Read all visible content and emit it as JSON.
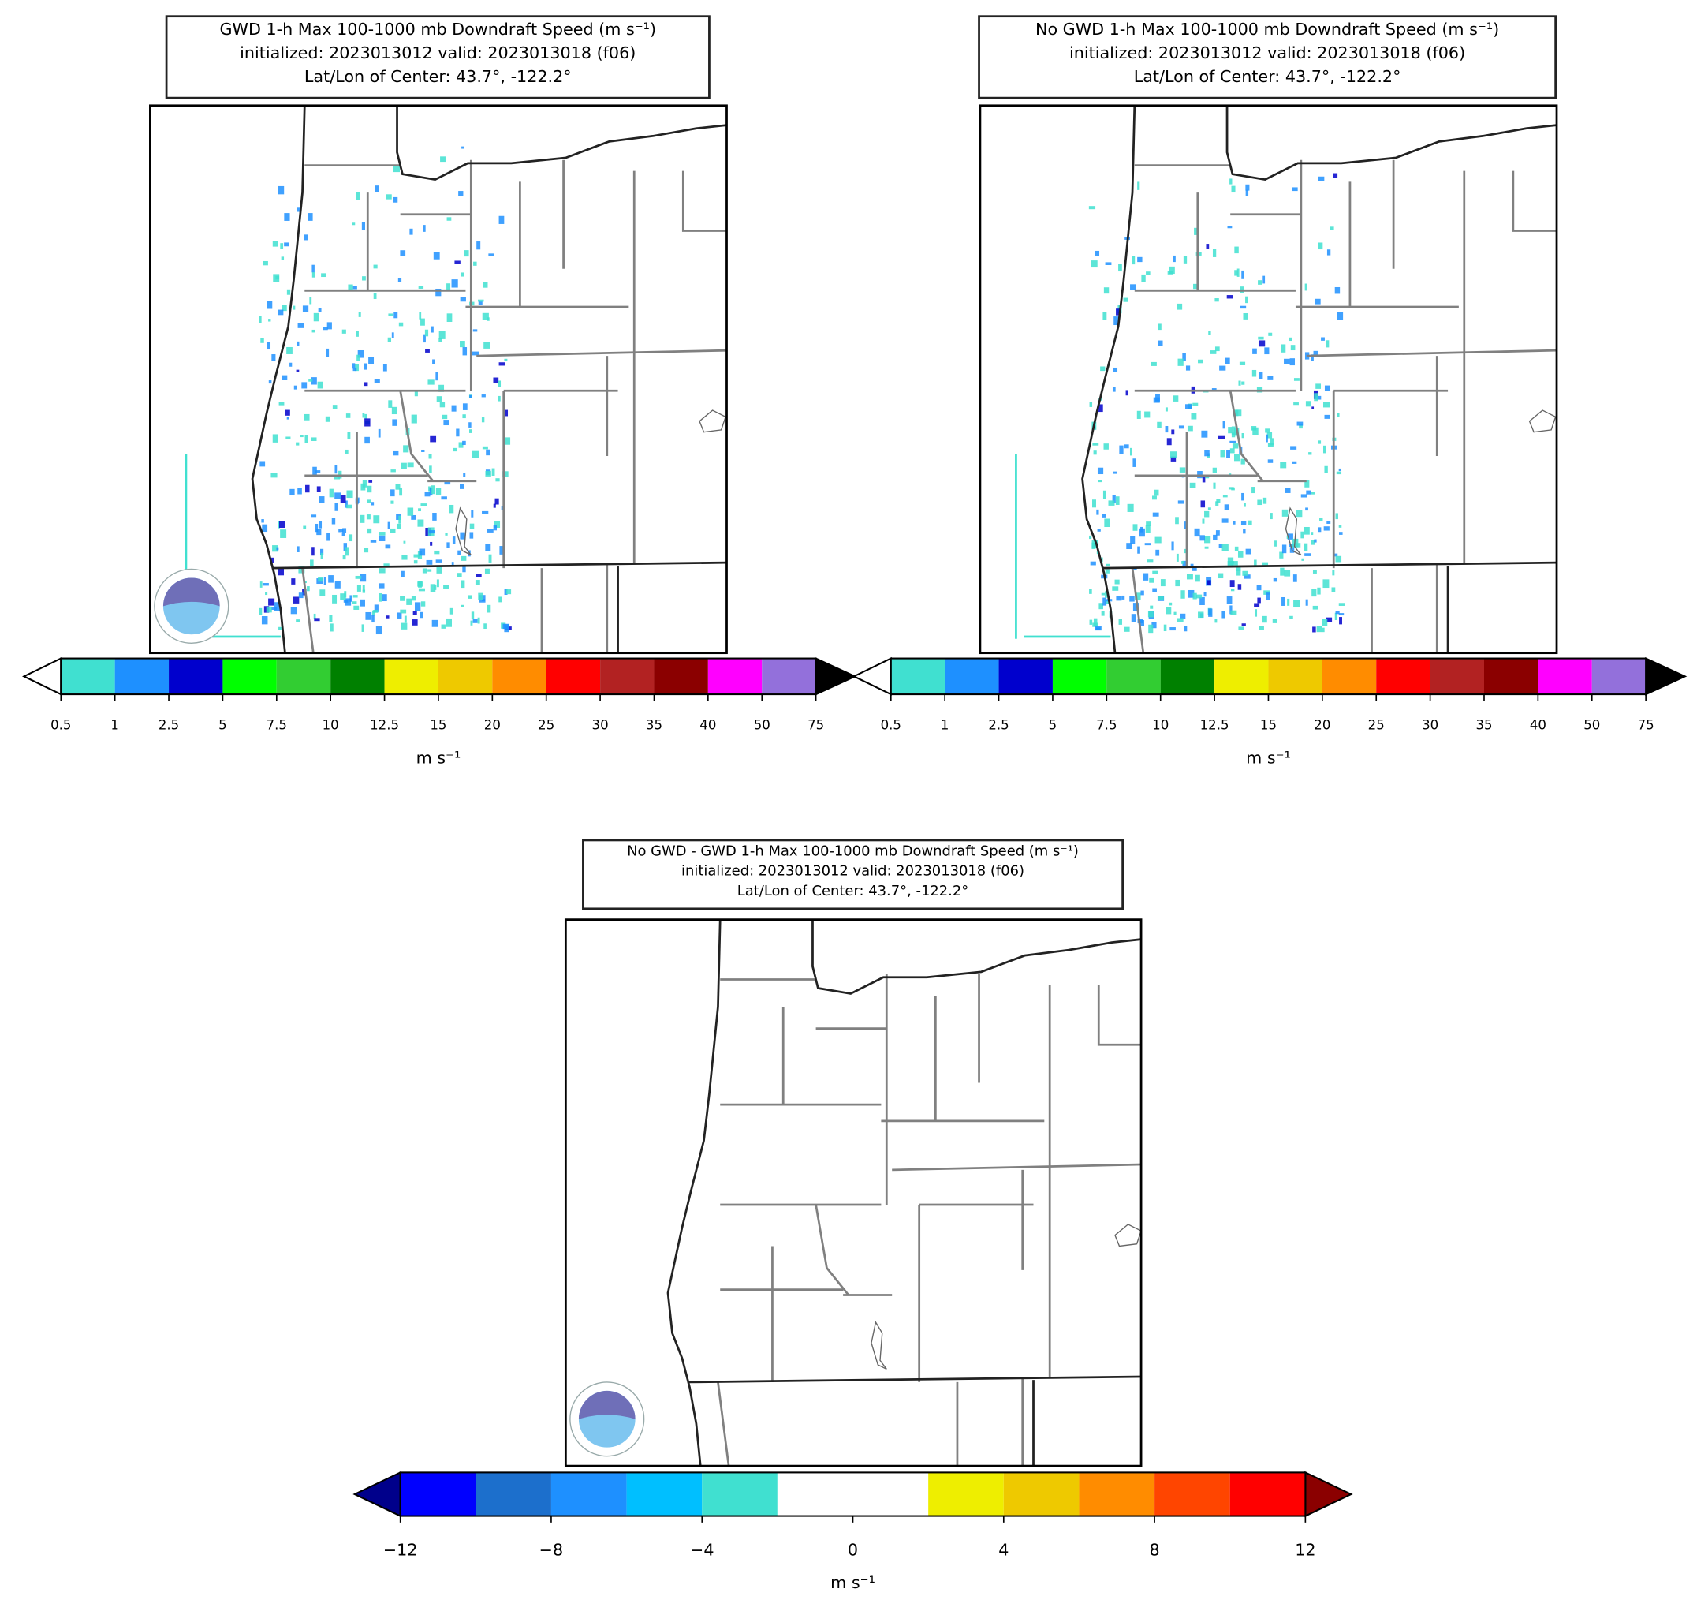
{
  "panels": [
    {
      "title": [
        "GWD 1-h Max 100-1000 mb Downdraft Speed (m s⁻¹)",
        "initialized: 2023013012 valid: 2023013018 (f06)",
        "Lat/Lon of Center: 43.7°, -122.2°"
      ],
      "colorbar": {
        "levels": [
          0.5,
          1,
          2.5,
          5,
          7.5,
          10,
          12.5,
          15,
          20,
          25,
          30,
          35,
          40,
          50,
          75
        ],
        "colors": [
          "#40e0d0",
          "#1e90ff",
          "#0000cd",
          "#00ff00",
          "#32cd32",
          "#008000",
          "#eeee00",
          "#eec900",
          "#ff8c00",
          "#ff0000",
          "#b22222",
          "#8b0000",
          "#ff00ff",
          "#9370db"
        ],
        "under": "#ffffff",
        "over": "#000000",
        "ticks": [
          0.5,
          1,
          2.5,
          5,
          7.5,
          10,
          12.5,
          15,
          20,
          25,
          30,
          35,
          40,
          50,
          75
        ],
        "label": "m s⁻¹"
      }
    },
    {
      "title": [
        "No GWD 1-h Max 100-1000 mb Downdraft Speed (m s⁻¹)",
        "initialized: 2023013012 valid: 2023013018 (f06)",
        "Lat/Lon of Center: 43.7°, -122.2°"
      ],
      "colorbar": {
        "levels": [
          0.5,
          1,
          2.5,
          5,
          7.5,
          10,
          12.5,
          15,
          20,
          25,
          30,
          35,
          40,
          50,
          75
        ],
        "colors": [
          "#40e0d0",
          "#1e90ff",
          "#0000cd",
          "#00ff00",
          "#32cd32",
          "#008000",
          "#eeee00",
          "#eec900",
          "#ff8c00",
          "#ff0000",
          "#b22222",
          "#8b0000",
          "#ff00ff",
          "#9370db"
        ],
        "under": "#ffffff",
        "over": "#000000",
        "ticks": [
          0.5,
          1,
          2.5,
          5,
          7.5,
          10,
          12.5,
          15,
          20,
          25,
          30,
          35,
          40,
          50,
          75
        ],
        "label": "m s⁻¹"
      }
    },
    {
      "title": [
        "No GWD - GWD 1-h Max 100-1000 mb Downdraft Speed (m s⁻¹)",
        "initialized: 2023013012 valid: 2023013018 (f06)",
        "Lat/Lon of Center: 43.7°, -122.2°"
      ],
      "colorbar": {
        "levels": [
          -12,
          -10,
          -8,
          -6,
          -4,
          -2,
          2,
          4,
          6,
          8,
          10,
          12
        ],
        "colors": [
          "#0000ff",
          "#1c6fcc",
          "#1e90ff",
          "#00bfff",
          "#40e0d0",
          "#ffffff",
          "#eeee00",
          "#eec900",
          "#ff8c00",
          "#ff4500",
          "#ff0000"
        ],
        "under": "#00008b",
        "over": "#8b0000",
        "ticks": [
          {
            "value": -12,
            "label": "−12"
          },
          {
            "value": -8,
            "label": "−8"
          },
          {
            "value": -4,
            "label": "−4"
          },
          0,
          4,
          8,
          12
        ],
        "label": "m s⁻¹"
      }
    }
  ]
}
